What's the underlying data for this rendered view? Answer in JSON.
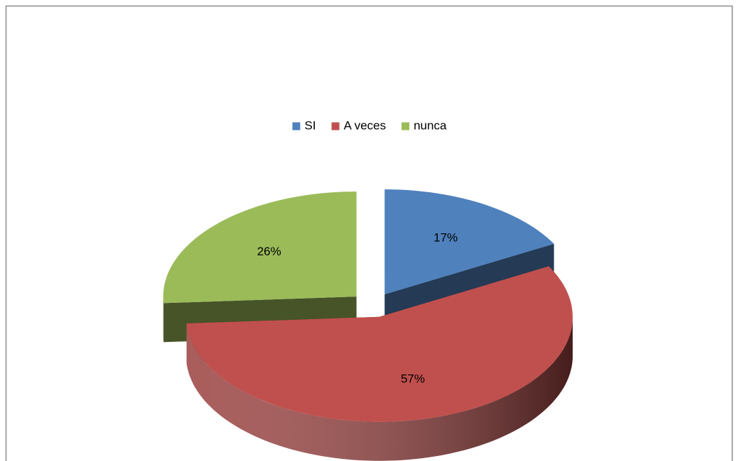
{
  "chart_data": {
    "type": "pie",
    "categories": [
      "SI",
      "A veces",
      "nunca"
    ],
    "values": [
      17,
      57,
      26
    ],
    "value_labels": [
      "17%",
      "57%",
      "26%"
    ],
    "colors": [
      "#4f81bd",
      "#c0504d",
      "#9bbb59"
    ],
    "legend": "top",
    "three_d": true,
    "exploded": true
  }
}
